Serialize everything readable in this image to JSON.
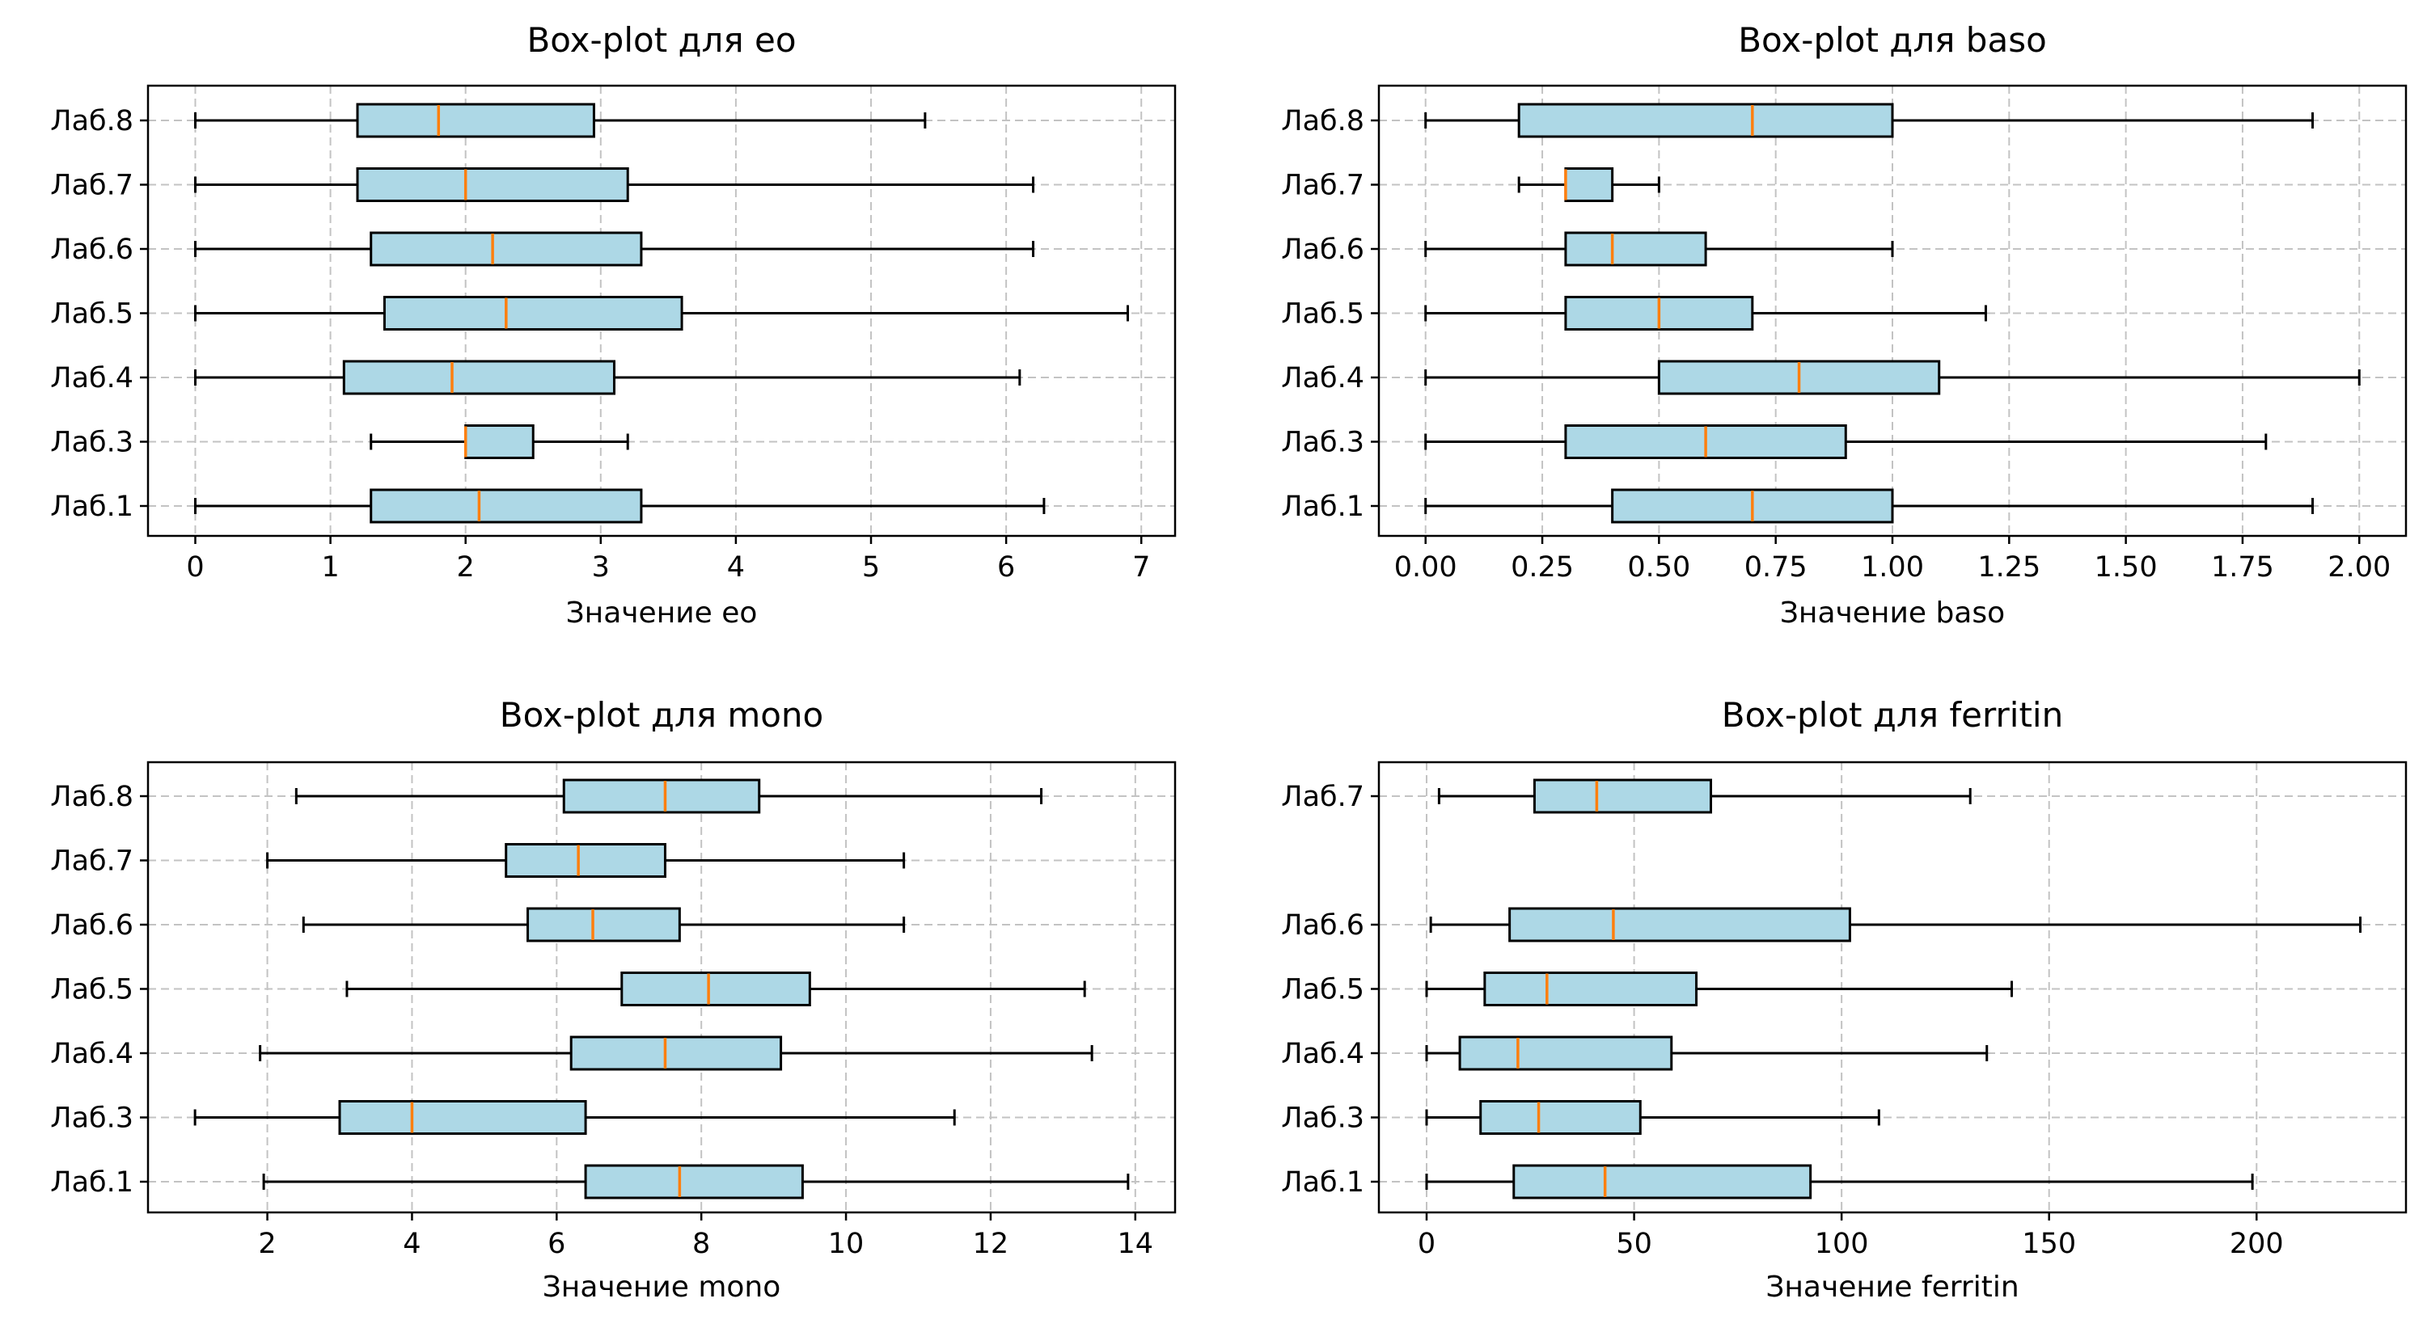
{
  "colors": {
    "box_fill": "#add8e6",
    "median": "#ff7f0e",
    "edge": "#000000",
    "grid": "#c3c3c3"
  },
  "chart_data": [
    {
      "type": "box",
      "title": "Box-plot для eo",
      "xlabel": "Значение eo",
      "xlim": [
        -0.35,
        7.25
      ],
      "xticks": [
        0,
        1,
        2,
        3,
        4,
        5,
        6,
        7
      ],
      "xtick_labels": [
        "0",
        "1",
        "2",
        "3",
        "4",
        "5",
        "6",
        "7"
      ],
      "grid": true,
      "categories": [
        "Лаб.1",
        "Лаб.3",
        "Лаб.4",
        "Лаб.5",
        "Лаб.6",
        "Лаб.7",
        "Лаб.8"
      ],
      "boxes": [
        {
          "min": 0,
          "q1": 1.3,
          "median": 2.1,
          "q3": 3.3,
          "max": 6.28
        },
        {
          "min": 1.3,
          "q1": 2.0,
          "median": 2.0,
          "q3": 2.5,
          "max": 3.2
        },
        {
          "min": 0,
          "q1": 1.1,
          "median": 1.9,
          "q3": 3.1,
          "max": 6.1
        },
        {
          "min": 0,
          "q1": 1.4,
          "median": 2.3,
          "q3": 3.6,
          "max": 6.9
        },
        {
          "min": 0,
          "q1": 1.3,
          "median": 2.2,
          "q3": 3.3,
          "max": 6.2
        },
        {
          "min": 0,
          "q1": 1.2,
          "median": 2.0,
          "q3": 3.2,
          "max": 6.2
        },
        {
          "min": 0,
          "q1": 1.2,
          "median": 1.8,
          "q3": 2.95,
          "max": 5.4
        }
      ]
    },
    {
      "type": "box",
      "title": "Box-plot для baso",
      "xlabel": "Значение baso",
      "xlim": [
        -0.1,
        2.1
      ],
      "xticks": [
        0,
        0.25,
        0.5,
        0.75,
        1.0,
        1.25,
        1.5,
        1.75,
        2.0
      ],
      "xtick_labels": [
        "0.00",
        "0.25",
        "0.50",
        "0.75",
        "1.00",
        "1.25",
        "1.50",
        "1.75",
        "2.00"
      ],
      "grid": true,
      "categories": [
        "Лаб.1",
        "Лаб.3",
        "Лаб.4",
        "Лаб.5",
        "Лаб.6",
        "Лаб.7",
        "Лаб.8"
      ],
      "boxes": [
        {
          "min": 0,
          "q1": 0.4,
          "median": 0.7,
          "q3": 1.0,
          "max": 1.9
        },
        {
          "min": 0,
          "q1": 0.3,
          "median": 0.6,
          "q3": 0.9,
          "max": 1.8
        },
        {
          "min": 0,
          "q1": 0.5,
          "median": 0.8,
          "q3": 1.1,
          "max": 2.0
        },
        {
          "min": 0,
          "q1": 0.3,
          "median": 0.5,
          "q3": 0.7,
          "max": 1.2
        },
        {
          "min": 0,
          "q1": 0.3,
          "median": 0.4,
          "q3": 0.6,
          "max": 1.0
        },
        {
          "min": 0.2,
          "q1": 0.3,
          "median": 0.3,
          "q3": 0.4,
          "max": 0.5
        },
        {
          "min": 0,
          "q1": 0.2,
          "median": 0.7,
          "q3": 1.0,
          "max": 1.9
        }
      ]
    },
    {
      "type": "box",
      "title": "Box-plot для mono",
      "xlabel": "Значение mono",
      "xlim": [
        0.35,
        14.55
      ],
      "xticks": [
        2,
        4,
        6,
        8,
        10,
        12,
        14
      ],
      "xtick_labels": [
        "2",
        "4",
        "6",
        "8",
        "10",
        "12",
        "14"
      ],
      "grid": true,
      "categories": [
        "Лаб.1",
        "Лаб.3",
        "Лаб.4",
        "Лаб.5",
        "Лаб.6",
        "Лаб.7",
        "Лаб.8"
      ],
      "boxes": [
        {
          "min": 1.95,
          "q1": 6.4,
          "median": 7.7,
          "q3": 9.4,
          "max": 13.9
        },
        {
          "min": 1.0,
          "q1": 3.0,
          "median": 4.0,
          "q3": 6.4,
          "max": 11.5
        },
        {
          "min": 1.9,
          "q1": 6.2,
          "median": 7.5,
          "q3": 9.1,
          "max": 13.4
        },
        {
          "min": 3.1,
          "q1": 6.9,
          "median": 8.1,
          "q3": 9.5,
          "max": 13.3
        },
        {
          "min": 2.5,
          "q1": 5.6,
          "median": 6.5,
          "q3": 7.7,
          "max": 10.8
        },
        {
          "min": 2.0,
          "q1": 5.3,
          "median": 6.3,
          "q3": 7.5,
          "max": 10.8
        },
        {
          "min": 2.4,
          "q1": 6.1,
          "median": 7.5,
          "q3": 8.8,
          "max": 12.7
        }
      ]
    },
    {
      "type": "box",
      "title": "Box-plot для ferritin",
      "xlabel": "Значение ferritin",
      "xlim": [
        -11.5,
        236
      ],
      "xticks": [
        0,
        50,
        100,
        150,
        200
      ],
      "xtick_labels": [
        "0",
        "50",
        "100",
        "150",
        "200"
      ],
      "grid": true,
      "categories": [
        "Лаб.1",
        "Лаб.3",
        "Лаб.4",
        "Лаб.5",
        "Лаб.6",
        "Лаб.7"
      ],
      "rows": [
        1,
        2,
        3,
        4,
        5,
        7
      ],
      "boxes": [
        {
          "min": 0,
          "q1": 21,
          "median": 43,
          "q3": 92.5,
          "max": 199
        },
        {
          "min": 0,
          "q1": 13,
          "median": 27,
          "q3": 51.5,
          "max": 109
        },
        {
          "min": 0,
          "q1": 8,
          "median": 22,
          "q3": 59,
          "max": 135
        },
        {
          "min": 0,
          "q1": 14,
          "median": 29,
          "q3": 65,
          "max": 141
        },
        {
          "min": 1,
          "q1": 20,
          "median": 45,
          "q3": 102,
          "max": 225
        },
        {
          "min": 3,
          "q1": 26,
          "median": 41,
          "q3": 68.5,
          "max": 131
        }
      ]
    }
  ]
}
